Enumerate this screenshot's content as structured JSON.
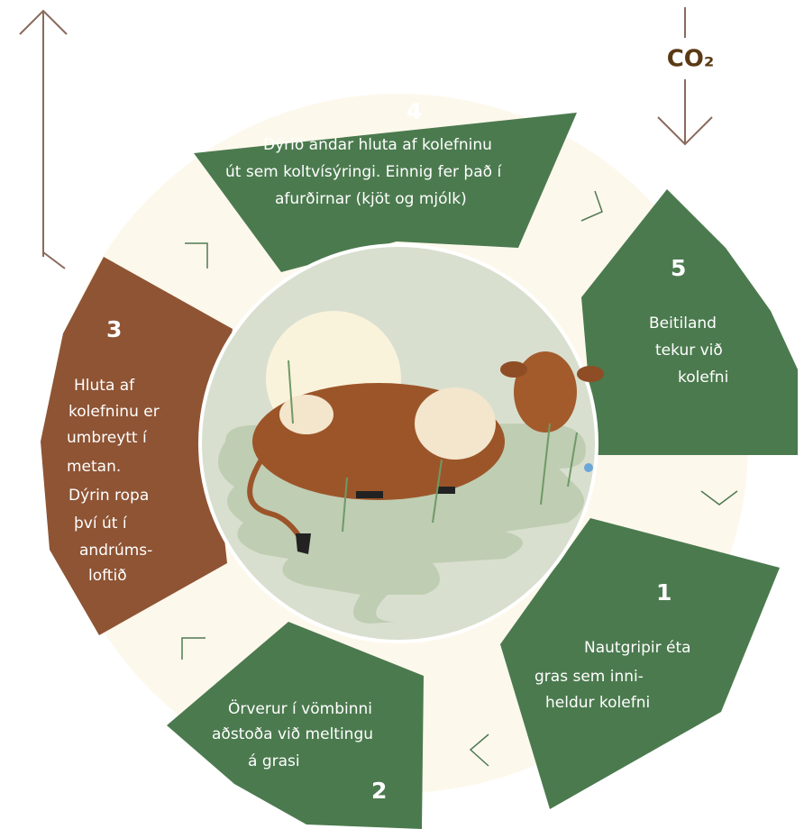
{
  "cycle": {
    "co2": "CO₂",
    "steps": [
      {
        "number": "1",
        "lines": [
          "Nautgripir éta",
          "gras sem inni-",
          "heldur kolefni"
        ]
      },
      {
        "number": "2",
        "lines": [
          "Örverur í vömbinni",
          "aðstoða við meltingu",
          "á grasi"
        ]
      },
      {
        "number": "3",
        "lines": [
          "Hluta af",
          "kolefninu er",
          "umbreytt í",
          "metan.",
          "Dýrin ropa",
          "því út í",
          "andrúms-",
          "loftið"
        ]
      },
      {
        "number": "4",
        "lines": [
          "Dýrið andar hluta af kolefninu",
          "út sem koltvísýringi. Einnig fer það í",
          "afurðirnar (kjöt og mjólk)"
        ]
      },
      {
        "number": "5",
        "lines": [
          "Beitiland",
          "tekur við",
          "kolefni"
        ]
      }
    ]
  }
}
